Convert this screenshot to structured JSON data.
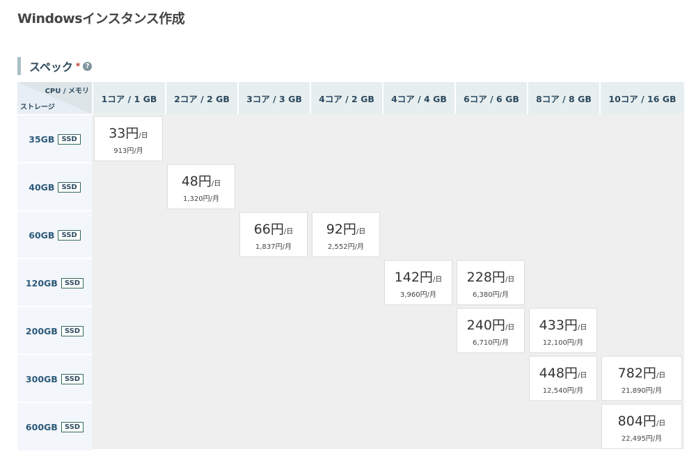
{
  "title": "Windowsインスタンス作成",
  "section": {
    "label": "スペック",
    "required": "*",
    "help": "?"
  },
  "corner": {
    "cpu_label": "CPU / メモリ",
    "storage_label": "ストレージ"
  },
  "columns": [
    "1コア / 1 GB",
    "2コア / 2 GB",
    "3コア / 3 GB",
    "4コア / 2 GB",
    "4コア / 4 GB",
    "6コア / 6 GB",
    "8コア / 8 GB",
    "10コア / 16 GB"
  ],
  "day_unit": "/日",
  "rows": [
    {
      "storage": "35GB",
      "type": "SSD",
      "cells": [
        {
          "col": 0,
          "daily": "33円",
          "monthly": "913円/月"
        }
      ]
    },
    {
      "storage": "40GB",
      "type": "SSD",
      "cells": [
        {
          "col": 1,
          "daily": "48円",
          "monthly": "1,320円/月"
        }
      ]
    },
    {
      "storage": "60GB",
      "type": "SSD",
      "cells": [
        {
          "col": 2,
          "daily": "66円",
          "monthly": "1,837円/月"
        },
        {
          "col": 3,
          "daily": "92円",
          "monthly": "2,552円/月"
        }
      ]
    },
    {
      "storage": "120GB",
      "type": "SSD",
      "cells": [
        {
          "col": 4,
          "daily": "142円",
          "monthly": "3,960円/月"
        },
        {
          "col": 5,
          "daily": "228円",
          "monthly": "6,380円/月"
        }
      ]
    },
    {
      "storage": "200GB",
      "type": "SSD",
      "cells": [
        {
          "col": 5,
          "daily": "240円",
          "monthly": "6,710円/月"
        },
        {
          "col": 6,
          "daily": "433円",
          "monthly": "12,100円/月"
        }
      ]
    },
    {
      "storage": "300GB",
      "type": "SSD",
      "cells": [
        {
          "col": 6,
          "daily": "448円",
          "monthly": "12,540円/月"
        },
        {
          "col": 7,
          "daily": "782円",
          "monthly": "21,890円/月"
        }
      ]
    },
    {
      "storage": "600GB",
      "type": "SSD",
      "cells": [
        {
          "col": 7,
          "daily": "804円",
          "monthly": "22,495円/月"
        }
      ]
    }
  ]
}
